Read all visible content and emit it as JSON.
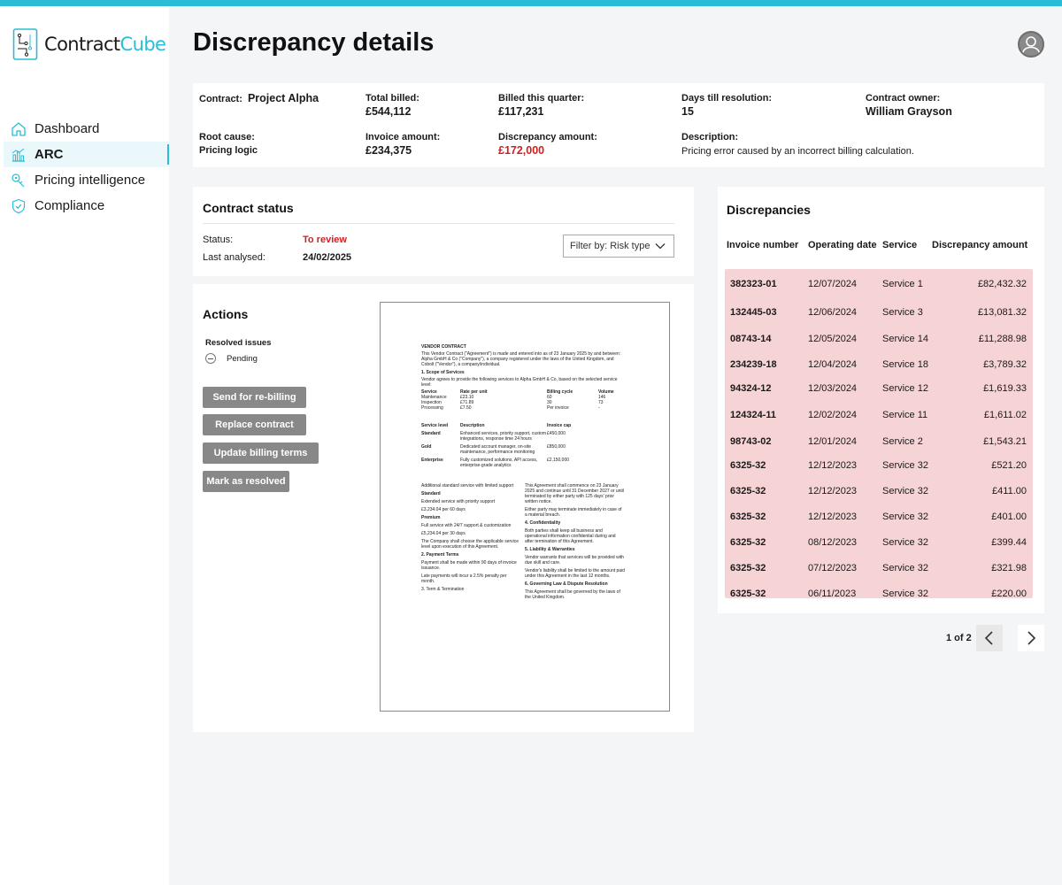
{
  "app": {
    "logo_part1": "Contract",
    "logo_part2": "Cube",
    "accent_color": "#2bbcd6"
  },
  "sidebar": {
    "items": [
      {
        "label": "Dashboard",
        "icon": "home-icon",
        "active": false
      },
      {
        "label": "ARC",
        "icon": "chart-icon",
        "active": true
      },
      {
        "label": "Pricing intelligence",
        "icon": "price-tag-icon",
        "active": false
      },
      {
        "label": "Compliance",
        "icon": "shield-check-icon",
        "active": false
      }
    ]
  },
  "header": {
    "title": "Discrepancy details",
    "avatar_icon": "user-avatar-icon"
  },
  "summary": {
    "contract_label": "Contract:",
    "contract_value": "Project Alpha",
    "total_billed_label": "Total billed:",
    "total_billed_value": "£544,112",
    "billed_quarter_label": "Billed this quarter:",
    "billed_quarter_value": "£117,231",
    "days_label": "Days till resolution:",
    "days_value": "15",
    "owner_label": "Contract owner:",
    "owner_value": "William Grayson",
    "root_cause_label": "Root cause:",
    "root_cause_value": "Pricing logic",
    "invoice_amount_label": "Invoice amount:",
    "invoice_amount_value": "£234,375",
    "discrepancy_amount_label": "Discrepancy amount:",
    "discrepancy_amount_value": "£172,000",
    "description_label": "Description:",
    "description_value": "Pricing error caused by an incorrect billing calculation."
  },
  "contract_status": {
    "title": "Contract status",
    "status_label": "Status:",
    "status_value": "To review",
    "last_analysed_label": "Last analysed:",
    "last_analysed_value": "24/02/2025",
    "filter_label": "Filter by: Risk type"
  },
  "actions": {
    "title": "Actions",
    "resolved_label": "Resolved issues",
    "pending_label": "Pending",
    "buttons": [
      "Send for re-billing",
      "Replace contract",
      "Update billing terms",
      "Mark as resolved"
    ]
  },
  "document": {
    "heading": "VENDOR CONTRACT",
    "intro": "This Vendor Contract (\"Agreement\") is made and entered into as of 23 January 2025 by and between: Alpha GmbH & Co (\"Company\"), a company registered under the laws of the United Kingdom, and Cobolt (\"Vendor\"), a company/individual.",
    "s1": "1. Scope of Services",
    "s1_text": "Vendor agrees to provide the following services to Alpha GmbH & Co, based on the selected service level:",
    "t_head": [
      "Service",
      "Rate per unit",
      "Billing cycle",
      "Volume"
    ],
    "t_rows": [
      [
        "Maintenance",
        "£23.10",
        "60",
        "146"
      ],
      [
        "Inspection",
        "£71.89",
        "30",
        "73"
      ],
      [
        "Processing",
        "£7.50",
        "Per invoice",
        "-"
      ]
    ],
    "sl_head": [
      "Service level",
      "Description",
      "Invoice cap"
    ],
    "sl_rows": [
      [
        "Standard",
        "Enhanced services, priority support, custom integrations, response time 24 hours",
        "£450,000"
      ],
      [
        "Gold",
        "Dedicated account manager, on-site maintenance, performance monitoring",
        "£850,000"
      ],
      [
        "Enterprise",
        "Fully customized solutions, API access, enterprise-grade analytics",
        "£2,150,000"
      ]
    ],
    "left_col": [
      "Additional standard service with limited support",
      "Standard",
      "Extended service with priority support",
      "£3,234.04 per 60 days",
      "Premium",
      "Full service with 24/7 support & customization",
      "£5,234.04 per 30 days",
      "The Company shall choose the applicable service level upon execution of this Agreement.",
      "2. Payment Terms",
      "Payment shall be made within 90 days of invoice issuance.",
      "Late payments will incur a 2.5% penalty per month.",
      "3. Term & Termination"
    ],
    "right_col": [
      "This Agreement shall commence on 23 January 2025 and continue until 31 December 2027 or until terminated by either party with 125 days' prior written notice.",
      "Either party may terminate immediately in case of a material breach.",
      "4. Confidentiality",
      "Both parties shall keep all business and operational information confidential during and after termination of this Agreement.",
      "5. Liability & Warranties",
      "Vendor warrants that services will be provided with due skill and care.",
      "Vendor's liability shall be limited to the amount paid under this Agreement in the last 12 months.",
      "6. Governing Law & Dispute Resolution",
      "This Agreement shall be governed by the laws of the United Kingdom."
    ]
  },
  "discrepancies": {
    "title": "Discrepancies",
    "columns": [
      "Invoice number",
      "Operating date",
      "Service",
      "Discrepancy amount"
    ],
    "rows": [
      [
        "382323-01",
        "12/07/2024",
        "Service 1",
        "£82,432.32"
      ],
      [
        "132445-03",
        "12/06/2024",
        "Service 3",
        "£13,081.32"
      ],
      [
        "08743-14",
        "12/05/2024",
        "Service 14",
        "£11,288.98"
      ],
      [
        "234239-18",
        "12/04/2024",
        "Service 18",
        "£3,789.32"
      ],
      [
        "94324-12",
        "12/03/2024",
        "Service 12",
        "£1,619.33"
      ],
      [
        "124324-11",
        "12/02/2024",
        "Service 11",
        "£1,611.02"
      ],
      [
        "98743-02",
        "12/01/2024",
        "Service 2",
        "£1,543.21"
      ],
      [
        "6325-32",
        "12/12/2023",
        "Service 32",
        "£521.20"
      ],
      [
        "6325-32",
        "12/12/2023",
        "Service 32",
        "£411.00"
      ],
      [
        "6325-32",
        "12/12/2023",
        "Service 32",
        "£401.00"
      ],
      [
        "6325-32",
        "08/12/2023",
        "Service 32",
        "£399.44"
      ],
      [
        "6325-32",
        "07/12/2023",
        "Service 32",
        "£321.98"
      ],
      [
        "6325-32",
        "06/11/2023",
        "Service 32",
        "£220.00"
      ]
    ],
    "row_color": "#f6d4d5",
    "pagination": "1 of 2"
  }
}
